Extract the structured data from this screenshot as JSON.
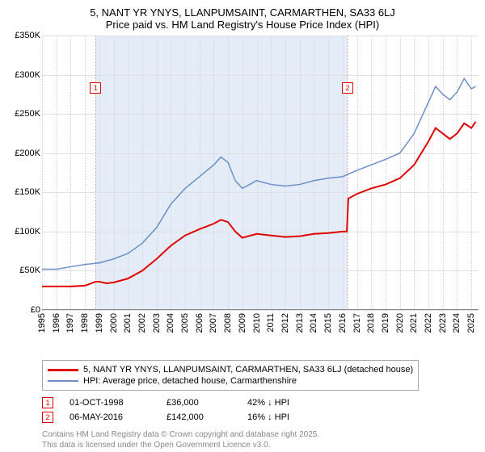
{
  "title_line1": "5, NANT YR YNYS, LLANPUMSAINT, CARMARTHEN, SA33 6LJ",
  "title_line2": "Price paid vs. HM Land Registry's House Price Index (HPI)",
  "chart": {
    "type": "line",
    "background_color": "#ffffff",
    "grid_color": "#e0e0e0",
    "vgrid_color": "#d5d5d5",
    "band_color": "#e4edf7",
    "x_range": [
      1995,
      2025.5
    ],
    "x_ticks": [
      1995,
      1996,
      1997,
      1998,
      1999,
      2000,
      2001,
      2002,
      2003,
      2004,
      2005,
      2006,
      2007,
      2008,
      2009,
      2010,
      2011,
      2012,
      2013,
      2014,
      2015,
      2016,
      2017,
      2018,
      2019,
      2020,
      2021,
      2022,
      2023,
      2024,
      2025
    ],
    "y_range": [
      0,
      350000
    ],
    "y_ticks": [
      0,
      50000,
      100000,
      150000,
      200000,
      250000,
      300000,
      350000
    ],
    "y_tick_labels": [
      "£0",
      "£50K",
      "£100K",
      "£150K",
      "£200K",
      "£250K",
      "£300K",
      "£350K"
    ],
    "band": {
      "start": 1998.75,
      "end": 2016.35
    },
    "markers": [
      {
        "num": "1",
        "x": 1998.75,
        "y": 290000,
        "color": "#e00000"
      },
      {
        "num": "2",
        "x": 2016.35,
        "y": 290000,
        "color": "#e00000"
      }
    ],
    "series": [
      {
        "name": "price_paid",
        "color": "#e00000",
        "width": 2,
        "data": [
          [
            1995,
            30000
          ],
          [
            1996,
            30000
          ],
          [
            1997,
            30000
          ],
          [
            1998,
            31000
          ],
          [
            1998.75,
            36000
          ],
          [
            1999,
            36000
          ],
          [
            1999.5,
            34000
          ],
          [
            2000,
            35000
          ],
          [
            2001,
            40000
          ],
          [
            2002,
            50000
          ],
          [
            2003,
            65000
          ],
          [
            2004,
            82000
          ],
          [
            2005,
            95000
          ],
          [
            2006,
            103000
          ],
          [
            2007,
            110000
          ],
          [
            2007.5,
            115000
          ],
          [
            2008,
            112000
          ],
          [
            2008.5,
            100000
          ],
          [
            2009,
            92000
          ],
          [
            2010,
            97000
          ],
          [
            2011,
            95000
          ],
          [
            2012,
            93000
          ],
          [
            2013,
            94000
          ],
          [
            2014,
            97000
          ],
          [
            2015,
            98000
          ],
          [
            2016,
            100000
          ],
          [
            2016.3,
            100000
          ],
          [
            2016.4,
            142000
          ],
          [
            2017,
            148000
          ],
          [
            2018,
            155000
          ],
          [
            2019,
            160000
          ],
          [
            2020,
            168000
          ],
          [
            2021,
            185000
          ],
          [
            2022,
            215000
          ],
          [
            2022.5,
            232000
          ],
          [
            2023,
            225000
          ],
          [
            2023.5,
            218000
          ],
          [
            2024,
            225000
          ],
          [
            2024.5,
            238000
          ],
          [
            2025,
            232000
          ],
          [
            2025.3,
            240000
          ]
        ]
      },
      {
        "name": "hpi",
        "color": "#6b8fc9",
        "width": 1.5,
        "data": [
          [
            1995,
            52000
          ],
          [
            1996,
            52000
          ],
          [
            1997,
            55000
          ],
          [
            1998,
            58000
          ],
          [
            1999,
            60000
          ],
          [
            2000,
            65000
          ],
          [
            2001,
            72000
          ],
          [
            2002,
            85000
          ],
          [
            2003,
            105000
          ],
          [
            2004,
            135000
          ],
          [
            2005,
            155000
          ],
          [
            2006,
            170000
          ],
          [
            2007,
            185000
          ],
          [
            2007.5,
            195000
          ],
          [
            2008,
            188000
          ],
          [
            2008.5,
            165000
          ],
          [
            2009,
            155000
          ],
          [
            2010,
            165000
          ],
          [
            2011,
            160000
          ],
          [
            2012,
            158000
          ],
          [
            2013,
            160000
          ],
          [
            2014,
            165000
          ],
          [
            2015,
            168000
          ],
          [
            2016,
            170000
          ],
          [
            2017,
            178000
          ],
          [
            2018,
            185000
          ],
          [
            2019,
            192000
          ],
          [
            2020,
            200000
          ],
          [
            2021,
            225000
          ],
          [
            2022,
            265000
          ],
          [
            2022.5,
            285000
          ],
          [
            2023,
            275000
          ],
          [
            2023.5,
            268000
          ],
          [
            2024,
            278000
          ],
          [
            2024.5,
            295000
          ],
          [
            2025,
            282000
          ],
          [
            2025.3,
            285000
          ]
        ]
      }
    ]
  },
  "legend": {
    "items": [
      {
        "color": "#e00000",
        "width": 3,
        "label": "5, NANT YR YNYS, LLANPUMSAINT, CARMARTHEN, SA33 6LJ (detached house)"
      },
      {
        "color": "#6b8fc9",
        "width": 2,
        "label": "HPI: Average price, detached house, Carmarthenshire"
      }
    ]
  },
  "datapoints": [
    {
      "num": "1",
      "color": "#e00000",
      "date": "01-OCT-1998",
      "price": "£36,000",
      "delta": "42% ↓ HPI"
    },
    {
      "num": "2",
      "color": "#e00000",
      "date": "06-MAY-2016",
      "price": "£142,000",
      "delta": "16% ↓ HPI"
    }
  ],
  "footer_line1": "Contains HM Land Registry data © Crown copyright and database right 2025.",
  "footer_line2": "This data is licensed under the Open Government Licence v3.0."
}
